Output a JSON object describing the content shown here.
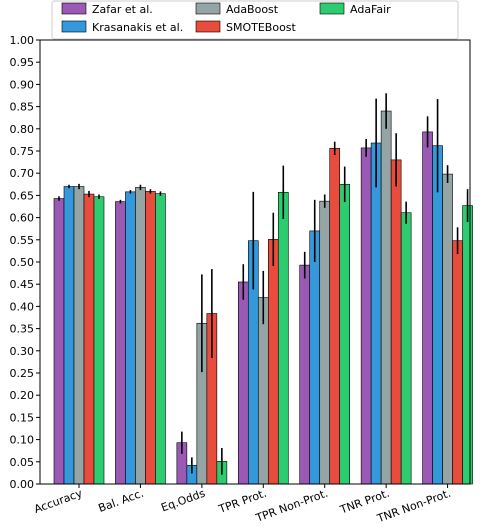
{
  "chart_data": {
    "type": "bar",
    "categories": [
      "Accuracy",
      "Bal. Acc.",
      "Eq.Odds",
      "TPR Prot.",
      "TPR Non-Prot.",
      "TNR Prot.",
      "TNR Non-Prot."
    ],
    "ylim": [
      0,
      1.0
    ],
    "yticks": [
      "0.00",
      "0.05",
      "0.10",
      "0.15",
      "0.20",
      "0.25",
      "0.30",
      "0.35",
      "0.40",
      "0.45",
      "0.50",
      "0.55",
      "0.60",
      "0.65",
      "0.70",
      "0.75",
      "0.80",
      "0.85",
      "0.90",
      "0.95",
      "1.00"
    ],
    "grid": false,
    "legend_position": "top",
    "series": [
      {
        "name": "Zafar et al.",
        "color": "#9b59b6",
        "values": [
          0.643,
          0.636,
          0.093,
          0.455,
          0.493,
          0.757,
          0.793
        ],
        "errors": [
          0.005,
          0.004,
          0.025,
          0.04,
          0.03,
          0.02,
          0.035
        ]
      },
      {
        "name": "Krasanakis et al.",
        "color": "#3498db",
        "values": [
          0.67,
          0.658,
          0.042,
          0.548,
          0.57,
          0.768,
          0.762
        ],
        "errors": [
          0.004,
          0.004,
          0.018,
          0.11,
          0.07,
          0.1,
          0.105
        ]
      },
      {
        "name": "AdaBoost",
        "color": "#95a5a6",
        "values": [
          0.67,
          0.668,
          0.362,
          0.42,
          0.637,
          0.84,
          0.698
        ],
        "errors": [
          0.006,
          0.006,
          0.11,
          0.06,
          0.015,
          0.04,
          0.02
        ]
      },
      {
        "name": "SMOTEBoost",
        "color": "#e74c3c",
        "values": [
          0.653,
          0.659,
          0.384,
          0.551,
          0.756,
          0.73,
          0.548
        ],
        "errors": [
          0.007,
          0.005,
          0.1,
          0.06,
          0.015,
          0.06,
          0.03
        ]
      },
      {
        "name": "AdaFair",
        "color": "#2ecc71",
        "values": [
          0.647,
          0.654,
          0.051,
          0.657,
          0.675,
          0.611,
          0.627
        ],
        "errors": [
          0.005,
          0.005,
          0.03,
          0.06,
          0.04,
          0.025,
          0.037
        ]
      }
    ]
  }
}
